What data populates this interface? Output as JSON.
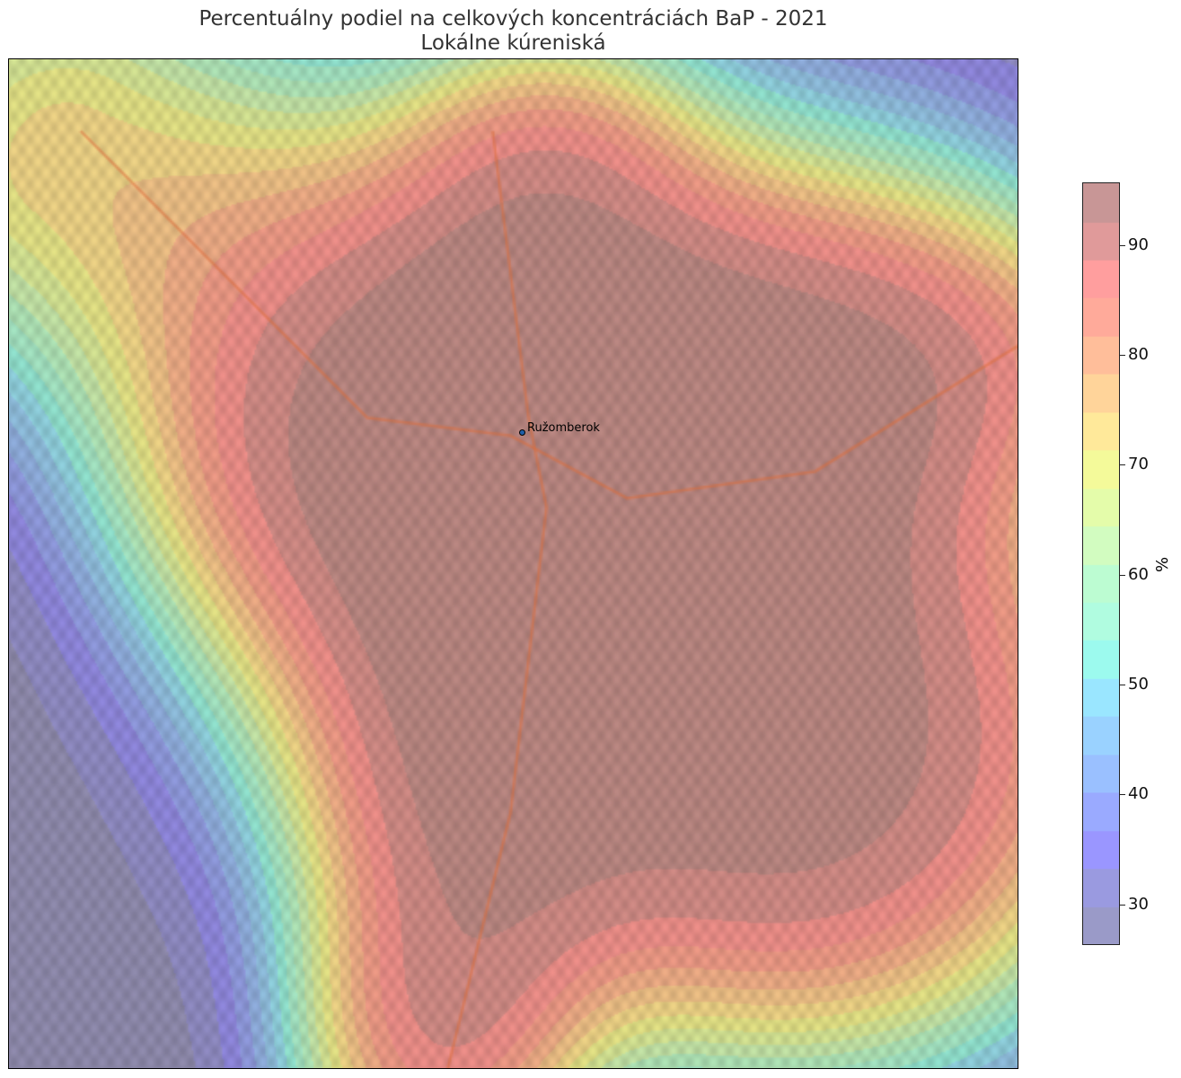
{
  "title": {
    "line1": "Percentuálny podiel na celkových koncentráciách BaP - 2021",
    "line2": "Lokálne kúreniská"
  },
  "map": {
    "city_label": "Ružomberok",
    "city_marker_color": "#1f5fa8"
  },
  "colorbar": {
    "label": "%",
    "min": 26.3,
    "max": 95.7,
    "levels": 20,
    "ticks": [
      "30",
      "40",
      "50",
      "60",
      "70",
      "80",
      "90"
    ],
    "tick_values": [
      30,
      40,
      50,
      60,
      70,
      80,
      90
    ],
    "colors_top_to_bottom": [
      "#c89696",
      "#e09a9a",
      "#ff9e9e",
      "#ffaa9a",
      "#ffbe9a",
      "#ffd49a",
      "#ffe99a",
      "#f4fa9a",
      "#e4fcaa",
      "#d2fcc0",
      "#bcfcd2",
      "#b0fce0",
      "#9cfaee",
      "#9ae6ff",
      "#9ad2ff",
      "#9ac0ff",
      "#9aaaff",
      "#9a96ff",
      "#9a9ae0",
      "#9a9ac8"
    ]
  }
}
